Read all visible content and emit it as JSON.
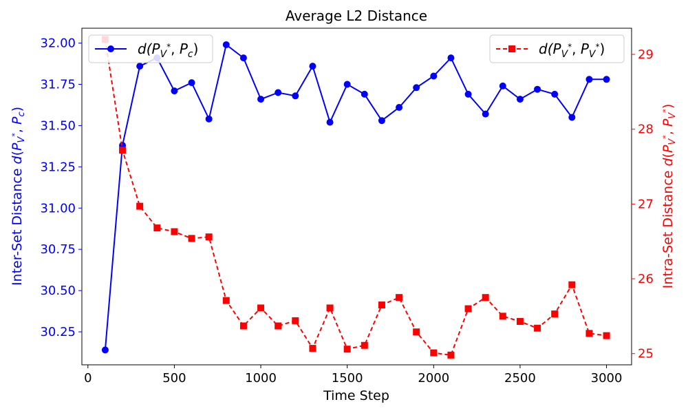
{
  "chart_data": {
    "type": "line",
    "title": "Average L2 Distance",
    "xlabel": "Time Step",
    "ylabel_left": "Inter-Set Distance d(P_{V*}, P_c)",
    "ylabel_right": "Intra-Set Distance d(P_{V*}, P_{V*})",
    "xlim": [
      -35,
      3145
    ],
    "ylim_left": [
      30.05,
      32.09
    ],
    "ylim_right": [
      24.85,
      29.35
    ],
    "x_ticks": [
      0,
      500,
      1000,
      1500,
      2000,
      2500,
      3000
    ],
    "y_left_ticks": [
      30.25,
      30.5,
      30.75,
      31.0,
      31.25,
      31.5,
      31.75,
      32.0
    ],
    "y_right_ticks": [
      25,
      26,
      27,
      28,
      29
    ],
    "x": [
      100,
      200,
      300,
      400,
      500,
      600,
      700,
      800,
      900,
      1000,
      1100,
      1200,
      1300,
      1400,
      1500,
      1600,
      1700,
      1800,
      1900,
      2000,
      2100,
      2200,
      2300,
      2400,
      2500,
      2600,
      2700,
      2800,
      2900,
      3000
    ],
    "series": [
      {
        "name": "d(P_{V*}, P_c)",
        "axis": "left",
        "color": "#0000ff",
        "style": "solid",
        "marker": "circle",
        "values": [
          30.14,
          31.38,
          31.86,
          31.91,
          31.71,
          31.76,
          31.54,
          31.99,
          31.91,
          31.66,
          31.7,
          31.68,
          31.86,
          31.52,
          31.75,
          31.69,
          31.53,
          31.61,
          31.73,
          31.8,
          31.91,
          31.69,
          31.57,
          31.74,
          31.66,
          31.72,
          31.69,
          31.55,
          31.78,
          31.78
        ]
      },
      {
        "name": "d(P_{V*}, P_{V*})",
        "axis": "right",
        "color": "#ff0000",
        "style": "dashed",
        "marker": "square",
        "values": [
          29.2,
          27.72,
          26.97,
          26.68,
          26.63,
          26.54,
          26.56,
          25.71,
          25.37,
          25.61,
          25.37,
          25.44,
          25.07,
          25.61,
          25.06,
          25.11,
          25.65,
          25.75,
          25.29,
          25.01,
          24.98,
          25.6,
          25.75,
          25.5,
          25.43,
          25.34,
          25.53,
          25.92,
          25.27,
          25.24
        ]
      }
    ],
    "legend_left_position": "top-left",
    "legend_right_position": "top-right",
    "grid": false,
    "colors": {
      "left_axis": "#0000ff",
      "right_axis": "#ff0000"
    }
  }
}
